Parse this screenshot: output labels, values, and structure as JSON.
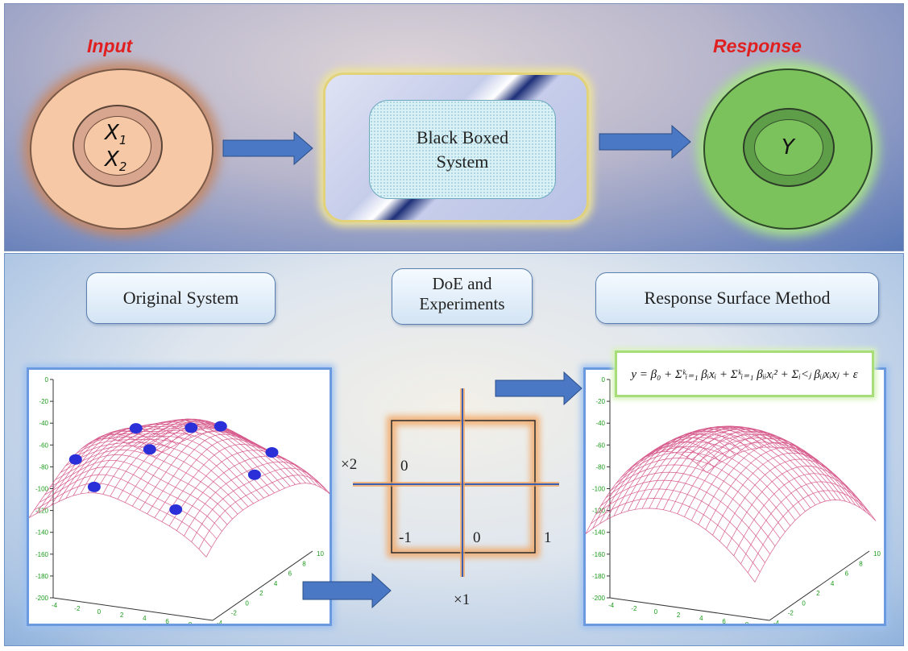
{
  "input_label": "Input",
  "response_label": "Response",
  "input_vars": {
    "x1": "X",
    "x1_sub": "1",
    "x2": "X",
    "x2_sub": "2"
  },
  "response_var": "Y",
  "black_box": {
    "line1": "Black Boxed",
    "line2": "System"
  },
  "stages": {
    "original": "Original System",
    "doe_line1": "DoE and",
    "doe_line2": "Experiments",
    "rsm": "Response Surface Method"
  },
  "plot_axes": {
    "z_ticks": [
      "0",
      "-20",
      "-40",
      "-60",
      "-80",
      "-100",
      "-120",
      "-140",
      "-160",
      "-180",
      "-200"
    ],
    "x_ticks": [
      "-4",
      "-2",
      "0",
      "2",
      "4",
      "6",
      "8",
      "10"
    ],
    "y_ticks": [
      "-4",
      "-2",
      "0",
      "2",
      "4",
      "6",
      "8",
      "10"
    ]
  },
  "doe_grid": {
    "x_axis_label": "×1",
    "y_axis_label": "×2",
    "label_zero_top": "0",
    "label_minus_one": "-1",
    "label_zero_bottom": "0",
    "label_one": "1"
  },
  "formula": "y = β₀ + Σᵏᵢ₌₁ βᵢxᵢ + Σᵏᵢ₌₁ βᵢᵢxᵢ² + Σᵢ<ⱼ βᵢⱼxᵢxⱼ + ε",
  "colors": {
    "input_ring": "#f7c8a6",
    "response_ring": "#7cc25c",
    "arrow": "#4a78c4",
    "mesh": "#d0407a",
    "points": "#2a2fd8",
    "axis_ticks": "#1a9a1a"
  }
}
